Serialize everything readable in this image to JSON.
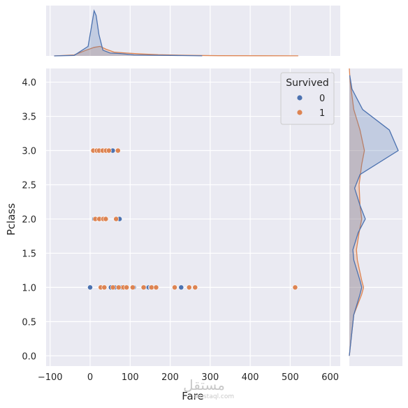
{
  "chart_data": {
    "type": "scatter",
    "subtype": "jointplot",
    "xlabel": "Fare",
    "ylabel": "Pclass",
    "xlim": [
      -110,
      625
    ],
    "ylim": [
      -0.15,
      4.2
    ],
    "xticks": [
      -100,
      0,
      100,
      200,
      300,
      400,
      500,
      600
    ],
    "xtick_labels": [
      "−100",
      "0",
      "100",
      "200",
      "300",
      "400",
      "500",
      "600"
    ],
    "yticks": [
      0.0,
      0.5,
      1.0,
      1.5,
      2.0,
      2.5,
      3.0,
      3.5,
      4.0
    ],
    "ytick_labels": [
      "0.0",
      "0.5",
      "1.0",
      "1.5",
      "2.0",
      "2.5",
      "3.0",
      "3.5",
      "4.0"
    ],
    "grid": true,
    "legend": {
      "title": "Survived",
      "placement": "top-right",
      "entries": [
        "0",
        "1"
      ]
    },
    "colors": {
      "0": "#4c72b0",
      "1": "#dd8452",
      "background": "#eaeaf2",
      "grid": "#ffffff"
    },
    "series": [
      {
        "name": "0",
        "points": [
          [
            7.25,
            3
          ],
          [
            7.9,
            3
          ],
          [
            8.05,
            3
          ],
          [
            14.5,
            3
          ],
          [
            21,
            3
          ],
          [
            31,
            3
          ],
          [
            46.9,
            3
          ],
          [
            56.5,
            3
          ],
          [
            10.5,
            2
          ],
          [
            13,
            2
          ],
          [
            21,
            2
          ],
          [
            26,
            2
          ],
          [
            36.5,
            2
          ],
          [
            73.5,
            2
          ],
          [
            0,
            1
          ],
          [
            26.55,
            1
          ],
          [
            35.5,
            1
          ],
          [
            52,
            1
          ],
          [
            61.2,
            1
          ],
          [
            79.2,
            1
          ],
          [
            108.9,
            1
          ],
          [
            135.6,
            1
          ],
          [
            146.5,
            1
          ],
          [
            151.55,
            1
          ],
          [
            211.5,
            1
          ],
          [
            227.5,
            1
          ],
          [
            247.5,
            1
          ]
        ]
      },
      {
        "name": "1",
        "points": [
          [
            7.9,
            3
          ],
          [
            16.7,
            3
          ],
          [
            22.4,
            3
          ],
          [
            31.4,
            3
          ],
          [
            39.7,
            3
          ],
          [
            46.9,
            3
          ],
          [
            69.55,
            3
          ],
          [
            13,
            2
          ],
          [
            23,
            2
          ],
          [
            33,
            2
          ],
          [
            39,
            2
          ],
          [
            65,
            2
          ],
          [
            26.55,
            1
          ],
          [
            35.5,
            1
          ],
          [
            57,
            1
          ],
          [
            71.3,
            1
          ],
          [
            83.2,
            1
          ],
          [
            91.1,
            1
          ],
          [
            106.4,
            1
          ],
          [
            133.65,
            1
          ],
          [
            153.5,
            1
          ],
          [
            164.9,
            1
          ],
          [
            211.3,
            1
          ],
          [
            247.5,
            1
          ],
          [
            262.4,
            1
          ],
          [
            512.33,
            1
          ]
        ]
      }
    ],
    "marginal_x_kde": {
      "0": [
        [
          -90,
          0.0
        ],
        [
          -40,
          0.01
        ],
        [
          -5,
          0.2
        ],
        [
          5,
          0.7
        ],
        [
          10,
          0.95
        ],
        [
          15,
          0.85
        ],
        [
          22,
          0.45
        ],
        [
          32,
          0.12
        ],
        [
          50,
          0.06
        ],
        [
          75,
          0.05
        ],
        [
          110,
          0.02
        ],
        [
          150,
          0.015
        ],
        [
          230,
          0.008
        ],
        [
          280,
          0.002
        ]
      ],
      "1": [
        [
          -90,
          0.0
        ],
        [
          -40,
          0.02
        ],
        [
          -10,
          0.12
        ],
        [
          10,
          0.18
        ],
        [
          25,
          0.2
        ],
        [
          40,
          0.14
        ],
        [
          60,
          0.08
        ],
        [
          90,
          0.06
        ],
        [
          130,
          0.04
        ],
        [
          170,
          0.025
        ],
        [
          230,
          0.015
        ],
        [
          260,
          0.01
        ],
        [
          320,
          0.004
        ],
        [
          520,
          0.002
        ]
      ]
    },
    "marginal_y_kde": {
      "0": [
        [
          0,
          0.0
        ],
        [
          0.6,
          0.05
        ],
        [
          0.9,
          0.12
        ],
        [
          1.0,
          0.14
        ],
        [
          1.1,
          0.12
        ],
        [
          1.4,
          0.05
        ],
        [
          1.55,
          0.04
        ],
        [
          1.8,
          0.1
        ],
        [
          2.0,
          0.18
        ],
        [
          2.2,
          0.12
        ],
        [
          2.45,
          0.06
        ],
        [
          2.65,
          0.12
        ],
        [
          3.0,
          0.55
        ],
        [
          3.3,
          0.45
        ],
        [
          3.6,
          0.15
        ],
        [
          3.9,
          0.03
        ],
        [
          4.1,
          0.005
        ]
      ],
      "1": [
        [
          0,
          0.0
        ],
        [
          0.6,
          0.05
        ],
        [
          0.9,
          0.14
        ],
        [
          1.0,
          0.16
        ],
        [
          1.1,
          0.14
        ],
        [
          1.4,
          0.09
        ],
        [
          1.55,
          0.08
        ],
        [
          1.8,
          0.11
        ],
        [
          2.0,
          0.14
        ],
        [
          2.2,
          0.12
        ],
        [
          2.5,
          0.11
        ],
        [
          2.8,
          0.14
        ],
        [
          3.0,
          0.17
        ],
        [
          3.3,
          0.12
        ],
        [
          3.6,
          0.05
        ],
        [
          4.0,
          0.01
        ],
        [
          4.2,
          0.0
        ]
      ]
    }
  },
  "watermark": {
    "main": "مستقل",
    "sub": "mostaql.com"
  }
}
